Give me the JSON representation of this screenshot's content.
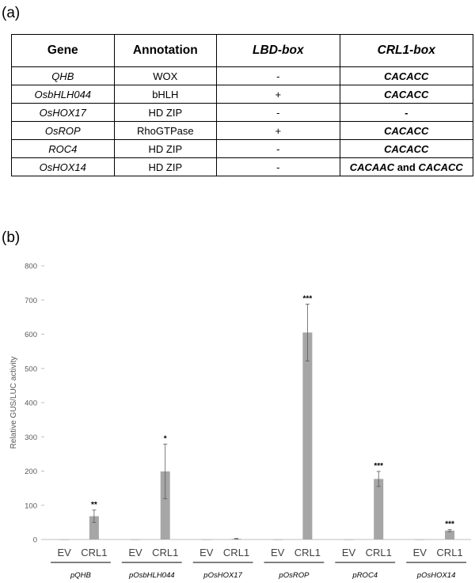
{
  "panel_a_label": "(a)",
  "panel_b_label": "(b)",
  "table": {
    "headers": [
      "Gene",
      "Annotation",
      "LBD-box",
      "CRL1-box"
    ],
    "rows": [
      {
        "gene": "QHB",
        "annotation": "WOX",
        "lbd": "-",
        "crl_parts": [
          {
            "text": "CACACC",
            "style": "bi"
          }
        ]
      },
      {
        "gene": "OsbHLH044",
        "annotation": "bHLH",
        "lbd": "+",
        "crl_parts": [
          {
            "text": "CACACC",
            "style": "bi"
          }
        ]
      },
      {
        "gene": "OsHOX17",
        "annotation": "HD ZIP",
        "lbd": "-",
        "crl_parts": [
          {
            "text": "-",
            "style": "b"
          }
        ]
      },
      {
        "gene": "OsROP",
        "annotation": "RhoGTPase",
        "lbd": "+",
        "crl_parts": [
          {
            "text": "CACACC",
            "style": "bi"
          }
        ]
      },
      {
        "gene": "ROC4",
        "annotation": "HD ZIP",
        "lbd": "-",
        "crl_parts": [
          {
            "text": "CACACC",
            "style": "bi"
          }
        ]
      },
      {
        "gene": "OsHOX14",
        "annotation": "HD ZIP",
        "lbd": "-",
        "crl_parts": [
          {
            "text": "CACAAC",
            "style": "bi"
          },
          {
            "text": " and ",
            "style": "b"
          },
          {
            "text": "CACACC",
            "style": "bi"
          }
        ]
      }
    ]
  },
  "chart_data": {
    "type": "bar",
    "title": "",
    "ylabel": "Relative GUS/LUC activity",
    "xlabel": "",
    "ylim": [
      0,
      800
    ],
    "yticks": [
      0,
      100,
      200,
      300,
      400,
      500,
      600,
      700,
      800
    ],
    "grid": false,
    "bar_color": "#a6a6a6",
    "groups": [
      {
        "name": "pQHB",
        "bars": [
          {
            "label": "EV",
            "value": 0,
            "error": 0,
            "sig": ""
          },
          {
            "label": "CRL1",
            "value": 68,
            "error": 18,
            "sig": "**"
          }
        ]
      },
      {
        "name": "pOsbHLH044",
        "bars": [
          {
            "label": "EV",
            "value": 0,
            "error": 0,
            "sig": ""
          },
          {
            "label": "CRL1",
            "value": 199,
            "error": 80,
            "sig": "*"
          }
        ]
      },
      {
        "name": "pOsHOX17",
        "bars": [
          {
            "label": "EV",
            "value": 0,
            "error": 0,
            "sig": ""
          },
          {
            "label": "CRL1",
            "value": 2,
            "error": 1,
            "sig": ""
          }
        ]
      },
      {
        "name": "pOsROP",
        "bars": [
          {
            "label": "EV",
            "value": 0,
            "error": 0,
            "sig": ""
          },
          {
            "label": "CRL1",
            "value": 605,
            "error": 83,
            "sig": "***"
          }
        ]
      },
      {
        "name": "pROC4",
        "bars": [
          {
            "label": "EV",
            "value": 0,
            "error": 0,
            "sig": ""
          },
          {
            "label": "CRL1",
            "value": 177,
            "error": 22,
            "sig": "***"
          }
        ]
      },
      {
        "name": "pOsHOX14",
        "bars": [
          {
            "label": "EV",
            "value": 0,
            "error": 0,
            "sig": ""
          },
          {
            "label": "CRL1",
            "value": 26,
            "error": 3,
            "sig": "***"
          }
        ]
      }
    ]
  }
}
